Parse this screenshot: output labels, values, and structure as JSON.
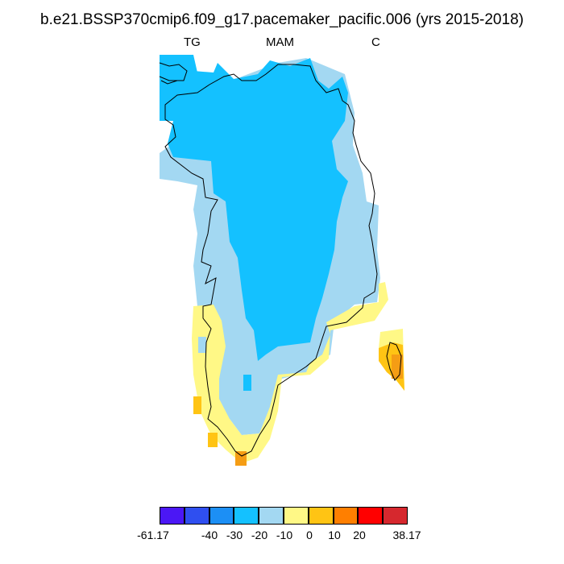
{
  "title": "b.e21.BSSP370cmip6.f09_g17.pacemaker_pacific.006 (yrs 2015-2018)",
  "subtitles": {
    "left": "TG",
    "center": "MAM",
    "right": "C"
  },
  "colorbar": {
    "colors": [
      "#4b17f5",
      "#2f4ff0",
      "#1c8ff5",
      "#14c1ff",
      "#a3d8f2",
      "#fff886",
      "#ffc414",
      "#ff7f00",
      "#ff0000",
      "#d6282e"
    ],
    "labels": [
      "-61.17",
      "-40",
      "-30",
      "-20",
      "-10",
      "0",
      "10",
      "20",
      "38.17"
    ]
  },
  "map_legend": {
    "deep_blue": "#14c1ff",
    "light_blue": "#a3d8f2",
    "yellow": "#fff886",
    "gold": "#ffc414",
    "orange": "#f59d14"
  }
}
